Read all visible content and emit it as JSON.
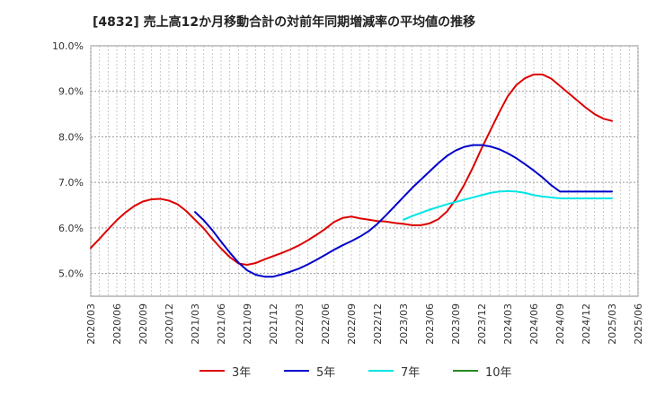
{
  "title": "[4832]  売上高12か月移動合計の対前年同期増減率の平均値の推移",
  "chart_data": {
    "type": "line",
    "title": "[4832]  売上高12か月移動合計の対前年同期増減率の平均値の推移",
    "xlabel": "",
    "ylabel": "",
    "y_ticks": [
      "5.0%",
      "6.0%",
      "7.0%",
      "8.0%",
      "9.0%",
      "10.0%"
    ],
    "ylim": [
      4.5,
      10.0
    ],
    "x_ticks": [
      "2020/03",
      "2020/06",
      "2020/09",
      "2020/12",
      "2021/03",
      "2021/06",
      "2021/09",
      "2021/12",
      "2022/03",
      "2022/06",
      "2022/09",
      "2022/12",
      "2023/03",
      "2023/06",
      "2023/09",
      "2023/12",
      "2024/03",
      "2024/06",
      "2024/09",
      "2024/12",
      "2025/03",
      "2025/06"
    ],
    "grid": true,
    "legend_position": "bottom",
    "series": [
      {
        "name": "3年",
        "color": "#dd0000",
        "x": [
          "2020/03",
          "2020/04",
          "2020/05",
          "2020/06",
          "2020/07",
          "2020/08",
          "2020/09",
          "2020/10",
          "2020/11",
          "2020/12",
          "2021/01",
          "2021/02",
          "2021/03",
          "2021/04",
          "2021/05",
          "2021/06",
          "2021/07",
          "2021/08",
          "2021/09",
          "2021/10",
          "2021/11",
          "2021/12",
          "2022/01",
          "2022/02",
          "2022/03",
          "2022/04",
          "2022/05",
          "2022/06",
          "2022/07",
          "2022/08",
          "2022/09",
          "2022/10",
          "2022/11",
          "2022/12",
          "2023/01",
          "2023/02",
          "2023/03",
          "2023/04",
          "2023/05",
          "2023/06",
          "2023/07",
          "2023/08",
          "2023/09",
          "2023/10",
          "2023/11",
          "2023/12",
          "2024/01",
          "2024/02",
          "2024/03",
          "2024/04",
          "2024/05",
          "2024/06",
          "2024/07",
          "2024/08",
          "2024/09",
          "2024/10",
          "2024/11",
          "2024/12",
          "2025/01",
          "2025/02",
          "2025/03"
        ],
        "values": [
          5.56,
          5.76,
          5.97,
          6.17,
          6.34,
          6.48,
          6.58,
          6.63,
          6.64,
          6.6,
          6.52,
          6.37,
          6.18,
          5.99,
          5.76,
          5.55,
          5.36,
          5.22,
          5.19,
          5.23,
          5.31,
          5.38,
          5.45,
          5.53,
          5.62,
          5.73,
          5.85,
          5.98,
          6.13,
          6.22,
          6.25,
          6.21,
          6.18,
          6.15,
          6.14,
          6.11,
          6.09,
          6.06,
          6.06,
          6.1,
          6.19,
          6.36,
          6.62,
          6.95,
          7.33,
          7.75,
          8.14,
          8.53,
          8.89,
          9.14,
          9.29,
          9.37,
          9.37,
          9.28,
          9.12,
          8.96,
          8.8,
          8.64,
          8.5,
          8.4,
          8.35
        ],
        "x_offset_end": "2025/03"
      },
      {
        "name": "5年",
        "color": "#0000cc",
        "x": [
          "2021/03",
          "2021/04",
          "2021/05",
          "2021/06",
          "2021/07",
          "2021/08",
          "2021/09",
          "2021/10",
          "2021/11",
          "2021/12",
          "2022/01",
          "2022/02",
          "2022/03",
          "2022/04",
          "2022/05",
          "2022/06",
          "2022/07",
          "2022/08",
          "2022/09",
          "2022/10",
          "2022/11",
          "2022/12",
          "2023/01",
          "2023/02",
          "2023/03",
          "2023/04",
          "2023/05",
          "2023/06",
          "2023/07",
          "2023/08",
          "2023/09",
          "2023/10",
          "2023/11",
          "2023/12",
          "2024/01",
          "2024/02",
          "2024/03",
          "2024/04",
          "2024/05",
          "2024/06",
          "2024/07",
          "2024/08",
          "2024/09",
          "2024/10",
          "2024/11",
          "2024/12",
          "2025/01",
          "2025/02",
          "2025/03"
        ],
        "values": [
          6.35,
          6.17,
          5.95,
          5.7,
          5.46,
          5.24,
          5.07,
          4.97,
          4.93,
          4.93,
          4.98,
          5.04,
          5.11,
          5.2,
          5.3,
          5.41,
          5.52,
          5.62,
          5.71,
          5.81,
          5.93,
          6.09,
          6.28,
          6.48,
          6.68,
          6.88,
          7.06,
          7.24,
          7.42,
          7.58,
          7.7,
          7.78,
          7.82,
          7.82,
          7.79,
          7.73,
          7.64,
          7.53,
          7.4,
          7.26,
          7.11,
          6.94,
          6.8,
          6.8,
          6.8,
          6.8,
          6.8,
          6.8,
          6.8
        ],
        "truncate_at": "2025/03"
      },
      {
        "name": "7年",
        "color": "#00e5e5",
        "x": [
          "2023/03",
          "2023/04",
          "2023/05",
          "2023/06",
          "2023/07",
          "2023/08",
          "2023/09",
          "2023/10",
          "2023/11",
          "2023/12",
          "2024/01",
          "2024/02",
          "2024/03",
          "2024/04",
          "2024/05",
          "2024/06",
          "2024/07",
          "2024/08",
          "2024/09",
          "2024/10",
          "2024/11",
          "2024/12",
          "2025/01",
          "2025/02",
          "2025/03"
        ],
        "values": [
          6.18,
          6.26,
          6.33,
          6.4,
          6.46,
          6.52,
          6.57,
          6.62,
          6.67,
          6.72,
          6.77,
          6.8,
          6.81,
          6.8,
          6.77,
          6.72,
          6.69,
          6.67,
          6.65,
          6.65,
          6.65,
          6.65,
          6.65,
          6.65,
          6.65
        ]
      },
      {
        "name": "10年",
        "color": "#228b22",
        "x": [],
        "values": []
      }
    ]
  }
}
